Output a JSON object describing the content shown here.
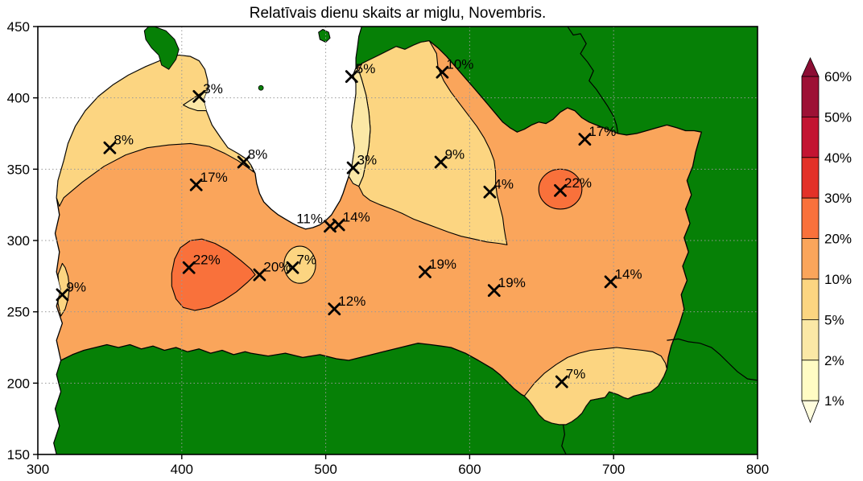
{
  "title": "Relatīvais dienu skaits ar miglu, Novembris.",
  "axes": {
    "x_tick_labels": [
      "300",
      "400",
      "500",
      "600",
      "700",
      "800"
    ],
    "x_tick_values": [
      300,
      400,
      500,
      600,
      700,
      800
    ],
    "y_tick_labels": [
      "150",
      "200",
      "250",
      "300",
      "350",
      "400",
      "450"
    ],
    "y_tick_values": [
      150,
      200,
      250,
      300,
      350,
      400,
      450
    ],
    "x_min": 300,
    "x_max": 800,
    "y_min": 150,
    "y_max": 450,
    "grid_x": [
      400,
      500,
      600,
      700
    ],
    "grid_y": [
      200,
      250,
      300,
      350,
      400
    ]
  },
  "colorbar": {
    "tick_labels": [
      "60%",
      "50%",
      "40%",
      "30%",
      "20%",
      "10%",
      "5%",
      "2%",
      "1%"
    ],
    "segment_colors_top_to_bottom": [
      "#9D1135",
      "#C31432",
      "#E33128",
      "#F9713B",
      "#FAA55B",
      "#FCD581",
      "#FBE8A6",
      "#FFFCC4"
    ],
    "arrow_top_color": "#8C0E34",
    "arrow_bottom_color": "#FFFDDE"
  },
  "map_colors": {
    "sea": "#FFFFFF",
    "outside_land": "#068006",
    "band_2_5": "#FBE8A6",
    "band_5_10": "#FCD581",
    "band_10_20": "#FAA55B",
    "band_20_30": "#F9713B",
    "contour_line": "#000000",
    "grid_line": "#999999"
  },
  "chart_data": {
    "type": "filled-contour-map",
    "title": "Relatīvais dienu skaits ar miglu, Novembris.",
    "x_range": [
      300,
      800
    ],
    "y_range": [
      150,
      450
    ],
    "contour_levels_percent": [
      1,
      2,
      5,
      10,
      20,
      30,
      40,
      50,
      60
    ],
    "legend_position": "right-colorbar",
    "grid": true,
    "stations": [
      {
        "x": 412,
        "y": 401,
        "value": 3,
        "label": "3%"
      },
      {
        "x": 350,
        "y": 365,
        "value": 8,
        "label": "8%"
      },
      {
        "x": 443,
        "y": 355,
        "value": 8,
        "label": "8%"
      },
      {
        "x": 410,
        "y": 339,
        "value": 17,
        "label": "17%"
      },
      {
        "x": 518,
        "y": 415,
        "value": 5,
        "label": "5%"
      },
      {
        "x": 519,
        "y": 351,
        "value": 3,
        "label": "3%"
      },
      {
        "x": 503,
        "y": 310,
        "value": 11,
        "label": "11%",
        "side": "left"
      },
      {
        "x": 509,
        "y": 311,
        "value": 14,
        "label": "14%"
      },
      {
        "x": 581,
        "y": 418,
        "value": 10,
        "label": "10%"
      },
      {
        "x": 680,
        "y": 371,
        "value": 17,
        "label": "17%"
      },
      {
        "x": 580,
        "y": 355,
        "value": 9,
        "label": "9%"
      },
      {
        "x": 614,
        "y": 334,
        "value": 4,
        "label": "4%"
      },
      {
        "x": 663,
        "y": 335,
        "value": 22,
        "label": "22%"
      },
      {
        "x": 317,
        "y": 262,
        "value": 9,
        "label": "9%"
      },
      {
        "x": 405,
        "y": 281,
        "value": 22,
        "label": "22%"
      },
      {
        "x": 454,
        "y": 276,
        "value": 20,
        "label": "20%"
      },
      {
        "x": 477,
        "y": 281,
        "value": 7,
        "label": "7%"
      },
      {
        "x": 506,
        "y": 252,
        "value": 12,
        "label": "12%"
      },
      {
        "x": 569,
        "y": 278,
        "value": 19,
        "label": "19%"
      },
      {
        "x": 617,
        "y": 265,
        "value": 19,
        "label": "19%"
      },
      {
        "x": 698,
        "y": 271,
        "value": 14,
        "label": "14%"
      },
      {
        "x": 664,
        "y": 201,
        "value": 7,
        "label": "7%"
      }
    ]
  }
}
